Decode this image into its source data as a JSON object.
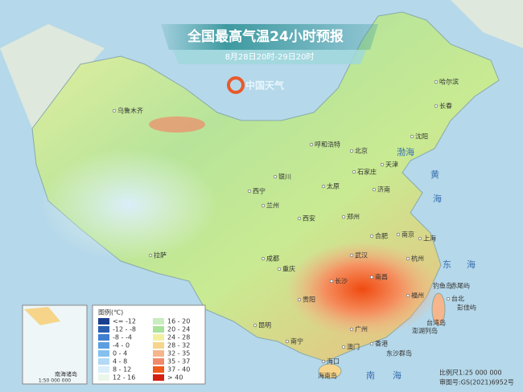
{
  "header": {
    "title": "全国最高气温24小时预报",
    "subtitle": "8月28日20时-29日20时",
    "logo": "中国天气"
  },
  "cities": [
    "乌鲁木齐",
    "哈尔滨",
    "长春",
    "沈阳",
    "呼和浩特",
    "北京",
    "天津",
    "石家庄",
    "太原",
    "济南",
    "银川",
    "西宁",
    "兰州",
    "郑州",
    "西安",
    "合肥",
    "南京",
    "上海",
    "武汉",
    "杭州",
    "成都",
    "重庆",
    "长沙",
    "南昌",
    "福州",
    "台北",
    "贵阳",
    "昆明",
    "南宁",
    "广州",
    "香港",
    "澳门",
    "海口",
    "拉萨"
  ],
  "islands": [
    "钓鱼岛",
    "赤尾屿",
    "彭佳屿",
    "台湾岛",
    "澎湖列岛",
    "东沙群岛",
    "海南岛"
  ],
  "seas": [
    "渤海",
    "黄",
    "海",
    "东",
    "海",
    "南",
    "海"
  ],
  "inset": {
    "title": "南海诸岛",
    "scale": "1:50 000 000"
  },
  "legend": {
    "title": "图例(℃)",
    "items": [
      {
        "label": "<= -12",
        "color": "#1a3f8f"
      },
      {
        "label": "-12 - -8",
        "color": "#2a5fb0"
      },
      {
        "label": "-8 - -4",
        "color": "#3f7fd0"
      },
      {
        "label": "-4 - 0",
        "color": "#5c9fe0"
      },
      {
        "label": "0 - 4",
        "color": "#86c0ee"
      },
      {
        "label": "4 - 8",
        "color": "#b2d9f5"
      },
      {
        "label": "8 - 12",
        "color": "#d9eefa"
      },
      {
        "label": "12 - 16",
        "color": "#eaf7ea"
      },
      {
        "label": "16 - 20",
        "color": "#c9ecc0"
      },
      {
        "label": "20 - 24",
        "color": "#a9e29a"
      },
      {
        "label": "24 - 28",
        "color": "#f2f0a0"
      },
      {
        "label": "28 - 32",
        "color": "#f6d58a"
      },
      {
        "label": "32 - 35",
        "color": "#f6b58a"
      },
      {
        "label": "35 - 37",
        "color": "#f08a6a"
      },
      {
        "label": "37 - 40",
        "color": "#f05a1a"
      },
      {
        "label": "> 40",
        "color": "#d42010"
      }
    ]
  },
  "footer": {
    "scale": "比例尺1:25 000 000",
    "approval": "审图号:GS(2021)6952号"
  }
}
